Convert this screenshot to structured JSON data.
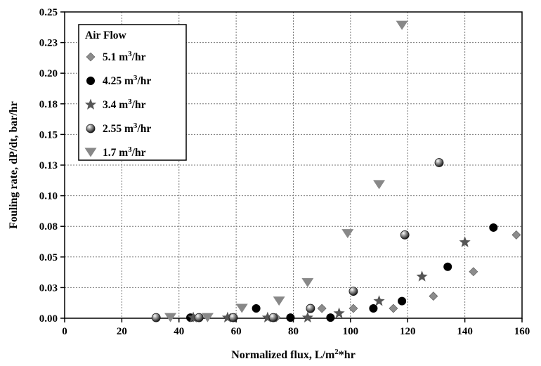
{
  "chart_data": {
    "type": "scatter",
    "xlabel": "Normalized flux, L/m²*hr",
    "xlabel_parts": {
      "pre": "Normalized flux, L/m",
      "sup": "2",
      "post": "*hr"
    },
    "ylabel": "Fouling rate, dP/dt, bar/hr",
    "xlim": [
      0,
      160
    ],
    "ylim": [
      0,
      0.25
    ],
    "xticks": [
      0,
      20,
      40,
      60,
      80,
      100,
      120,
      140,
      160
    ],
    "xtick_labels": [
      "0",
      "20",
      "40",
      "60",
      "80",
      "100",
      "120",
      "140",
      "160"
    ],
    "yticks": [
      0,
      0.025,
      0.05,
      0.075,
      0.1,
      0.125,
      0.15,
      0.175,
      0.2,
      0.225,
      0.25
    ],
    "ytick_labels": [
      "0.00",
      "0.03",
      "0.05",
      "0.08",
      "0.10",
      "0.13",
      "0.15",
      "0.18",
      "0.20",
      "0.23",
      "0.25"
    ],
    "grid": true,
    "legend_position": "top-left",
    "legend_title": "Air Flow",
    "series": [
      {
        "name": "5.1 m³/hr",
        "label_pre": "5.1 m",
        "label_sup": "3",
        "label_post": "/hr",
        "marker": "diamond",
        "color": "#8c8c8c",
        "x": [
          45,
          47,
          58,
          74,
          90,
          101,
          115,
          129,
          143,
          158
        ],
        "y": [
          0.0005,
          0.0005,
          0.0005,
          0.0005,
          0.008,
          0.008,
          0.008,
          0.018,
          0.038,
          0.068
        ]
      },
      {
        "name": "4.25 m³/hr",
        "label_pre": "4.25 m",
        "label_sup": "3",
        "label_post": "/hr",
        "marker": "circle",
        "color": "#000000",
        "x": [
          44,
          67,
          79,
          93,
          108,
          118,
          134,
          150
        ],
        "y": [
          0.0005,
          0.008,
          0.0005,
          0.0005,
          0.008,
          0.014,
          0.042,
          0.074
        ]
      },
      {
        "name": "3.4 m³/hr",
        "label_pre": "3.4 m",
        "label_sup": "3",
        "label_post": "/hr",
        "marker": "star",
        "color": "#555555",
        "x": [
          45,
          57,
          71,
          85,
          96,
          110,
          125,
          140
        ],
        "y": [
          0.0005,
          0.0005,
          0.0005,
          0.0005,
          0.004,
          0.014,
          0.034,
          0.062
        ]
      },
      {
        "name": "2.55 m³/hr",
        "label_pre": "2.55 m",
        "label_sup": "3",
        "label_post": "/hr",
        "marker": "sphere",
        "color": "#666666",
        "x": [
          32,
          47,
          59,
          73,
          86,
          101,
          119,
          131
        ],
        "y": [
          0.0005,
          0.0005,
          0.0005,
          0.0005,
          0.008,
          0.022,
          0.068,
          0.127
        ]
      },
      {
        "name": "1.7 m³/hr",
        "label_pre": "1.7 m",
        "label_sup": "3",
        "label_post": "/hr",
        "marker": "triangle-down",
        "color": "#888888",
        "x": [
          37,
          50,
          62,
          75,
          85,
          99,
          110,
          118
        ],
        "y": [
          0.0005,
          0.0005,
          0.008,
          0.014,
          0.029,
          0.069,
          0.109,
          0.239
        ]
      }
    ]
  }
}
